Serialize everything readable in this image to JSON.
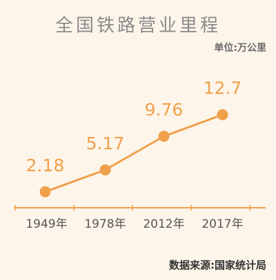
{
  "chart_data": {
    "type": "line",
    "title": "全国铁路营业里程",
    "unit": "单位:万公里",
    "source": "数据来源:国家统计局",
    "categories": [
      "1949年",
      "1978年",
      "2012年",
      "2017年"
    ],
    "values": [
      2.18,
      5.17,
      9.76,
      12.7
    ],
    "color": "#f0a04b"
  }
}
